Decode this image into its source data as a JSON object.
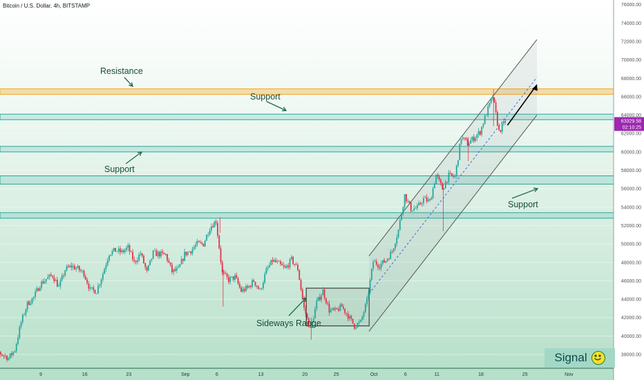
{
  "chart_title": "Bitcoin / U.S. Dollar, 4h, BITSTAMP",
  "signal_label": "Signal",
  "signal_icon": "smiley-face-icon",
  "chart_data": {
    "type": "candlestick",
    "title": "Bitcoin / U.S. Dollar, 4h, BITSTAMP",
    "ylim": [
      36500,
      76500
    ],
    "y_ticks": [
      38000,
      40000,
      42000,
      44000,
      46000,
      48000,
      50000,
      52000,
      54000,
      56000,
      58000,
      60000,
      62000,
      64000,
      66000,
      68000,
      70000,
      72000,
      74000,
      76000
    ],
    "x_ticks": [
      "9",
      "16",
      "23",
      "Sep",
      "6",
      "13",
      "20",
      "25",
      "Oct",
      "6",
      "11",
      "18",
      "25",
      "Nov"
    ],
    "current_price": "63329.58",
    "countdown": "02:10:25",
    "colors": {
      "up": "#26a69a",
      "down": "#e0344a",
      "zone": "#26a69a",
      "resistance": "#f5a623",
      "price_tag": "#9c27b0"
    },
    "price_path": [
      [
        "Jul 31",
        38800
      ],
      [
        "Aug 2",
        38400
      ],
      [
        "Aug 4",
        37600
      ],
      [
        "Aug 5",
        38500
      ],
      [
        "Aug 6",
        41500
      ],
      [
        "Aug 7",
        43500
      ],
      [
        "Aug 8",
        44200
      ],
      [
        "Aug 9",
        45600
      ],
      [
        "Aug 10",
        46200
      ],
      [
        "Aug 11",
        46600
      ],
      [
        "Aug 12",
        45300
      ],
      [
        "Aug 13",
        47200
      ],
      [
        "Aug 14",
        47600
      ],
      [
        "Aug 15",
        47300
      ],
      [
        "Aug 16",
        46800
      ],
      [
        "Aug 17",
        45000
      ],
      [
        "Aug 18",
        44900
      ],
      [
        "Aug 19",
        46800
      ],
      [
        "Aug 20",
        49000
      ],
      [
        "Aug 21",
        49300
      ],
      [
        "Aug 22",
        49100
      ],
      [
        "Aug 23",
        49600
      ],
      [
        "Aug 24",
        48000
      ],
      [
        "Aug 25",
        49000
      ],
      [
        "Aug 26",
        46900
      ],
      [
        "Aug 27",
        49000
      ],
      [
        "Aug 28",
        48900
      ],
      [
        "Aug 29",
        48800
      ],
      [
        "Aug 30",
        47000
      ],
      [
        "Aug 31",
        47200
      ],
      [
        "Sep 1",
        48900
      ],
      [
        "Sep 2",
        49300
      ],
      [
        "Sep 3",
        50000
      ],
      [
        "Sep 4",
        50000
      ],
      [
        "Sep 5",
        51800
      ],
      [
        "Sep 6",
        52500
      ],
      [
        "Sep 7",
        46800
      ],
      [
        "Sep 8",
        46100
      ],
      [
        "Sep 9",
        46400
      ],
      [
        "Sep 10",
        44900
      ],
      [
        "Sep 11",
        45200
      ],
      [
        "Sep 12",
        46000
      ],
      [
        "Sep 13",
        44900
      ],
      [
        "Sep 14",
        47100
      ],
      [
        "Sep 15",
        48200
      ],
      [
        "Sep 16",
        47800
      ],
      [
        "Sep 17",
        47300
      ],
      [
        "Sep 18",
        48300
      ],
      [
        "Sep 19",
        47300
      ],
      [
        "Sep 20",
        43000
      ],
      [
        "Sep 21",
        40700
      ],
      [
        "Sep 22",
        43600
      ],
      [
        "Sep 23",
        44900
      ],
      [
        "Sep 24",
        42800
      ],
      [
        "Sep 25",
        42700
      ],
      [
        "Sep 26",
        43200
      ],
      [
        "Sep 27",
        42200
      ],
      [
        "Sep 28",
        41100
      ],
      [
        "Sep 29",
        41500
      ],
      [
        "Sep 30",
        43800
      ],
      [
        "Oct 1",
        48100
      ],
      [
        "Oct 2",
        47700
      ],
      [
        "Oct 3",
        48200
      ],
      [
        "Oct 4",
        49200
      ],
      [
        "Oct 5",
        51500
      ],
      [
        "Oct 6",
        55300
      ],
      [
        "Oct 7",
        53800
      ],
      [
        "Oct 8",
        53900
      ],
      [
        "Oct 9",
        54900
      ],
      [
        "Oct 10",
        54600
      ],
      [
        "Oct 11",
        57500
      ],
      [
        "Oct 12",
        56000
      ],
      [
        "Oct 13",
        57400
      ],
      [
        "Oct 14",
        57300
      ],
      [
        "Oct 15",
        61600
      ],
      [
        "Oct 16",
        60900
      ],
      [
        "Oct 17",
        61500
      ],
      [
        "Oct 18",
        62200
      ],
      [
        "Oct 19",
        64200
      ],
      [
        "Oct 20",
        66000
      ],
      [
        "Oct 21",
        62200
      ],
      [
        "Oct 22",
        63329.58
      ]
    ],
    "zones": [
      {
        "kind": "resistance",
        "from": 66250,
        "to": 66850
      },
      {
        "kind": "support",
        "from": 63500,
        "to": 64100
      },
      {
        "kind": "support",
        "from": 60000,
        "to": 60600
      },
      {
        "kind": "support",
        "from": 56500,
        "to": 57400
      },
      {
        "kind": "support",
        "from": 52800,
        "to": 53400
      }
    ],
    "annotations": [
      "Resistance",
      "Support",
      "Support",
      "Support",
      "Sideways Range"
    ]
  }
}
